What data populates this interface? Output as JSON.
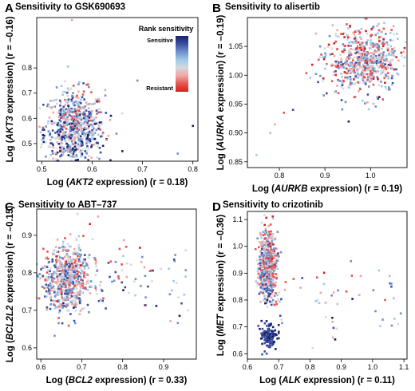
{
  "legend": {
    "title": "Rank sensitivity",
    "top_label": "Sensitive",
    "bottom_label": "Resistant",
    "colors": [
      "#1a1f6e",
      "#3a4fa0",
      "#6f8fce",
      "#9ccbe8",
      "#d6d8dc",
      "#f2a5a5",
      "#e8544e",
      "#d81e1e"
    ]
  },
  "chart_data": [
    {
      "panel": "A",
      "type": "scatter",
      "title": "Sensitivity to GSK690693",
      "xlabel_prefix": "Log (",
      "xlabel_gene": "AKT2",
      "xlabel_suffix": " expression) (r = 0.18)",
      "ylabel_prefix": "Log (",
      "ylabel_gene": "AKT3",
      "ylabel_suffix": " expression) (r = –0.16)",
      "xlim": [
        0.49,
        0.81
      ],
      "ylim": [
        0.43,
        1.0
      ],
      "xticks": [
        {
          "v": 0.5,
          "t": "0.5"
        },
        {
          "v": 0.6,
          "t": "0.6"
        },
        {
          "v": 0.7,
          "t": "0.7"
        },
        {
          "v": 0.8,
          "t": "0.8"
        }
      ],
      "yticks": [
        {
          "v": 0.5,
          "t": "0.5"
        },
        {
          "v": 0.6,
          "t": "0.6"
        },
        {
          "v": 0.7,
          "t": "0.7"
        },
        {
          "v": 0.8,
          "t": "0.8"
        }
      ],
      "n_points": 700,
      "cluster": {
        "cx": 0.565,
        "sx": 0.03,
        "cy": 0.56,
        "sy": 0.075
      },
      "outliers": [
        [
          0.56,
          0.99
        ],
        [
          0.69,
          0.75
        ],
        [
          0.8,
          0.57
        ],
        [
          0.77,
          0.46
        ],
        [
          0.66,
          0.47
        ]
      ],
      "has_legend": true
    },
    {
      "panel": "B",
      "type": "scatter",
      "title": "Sensitivity to alisertib",
      "xlabel_prefix": "Log (",
      "xlabel_gene": "AURKB",
      "xlabel_suffix": " expression) (r = 0.19)",
      "ylabel_prefix": "Log (",
      "ylabel_gene": "AURKA",
      "ylabel_suffix": " expression) (r = –0.19)",
      "xlim": [
        0.73,
        1.08
      ],
      "ylim": [
        0.84,
        1.1
      ],
      "xticks": [
        {
          "v": 0.8,
          "t": "0.8"
        },
        {
          "v": 0.9,
          "t": "0.9"
        },
        {
          "v": 1.0,
          "t": "1.0"
        }
      ],
      "yticks": [
        {
          "v": 0.85,
          "t": "0.85"
        },
        {
          "v": 0.9,
          "t": "0.90"
        },
        {
          "v": 0.95,
          "t": "0.95"
        },
        {
          "v": 1.0,
          "t": "1.00"
        },
        {
          "v": 1.05,
          "t": "1.05"
        }
      ],
      "n_points": 650,
      "cluster": {
        "cx": 0.985,
        "sx": 0.04,
        "cy": 1.025,
        "sy": 0.028
      },
      "outliers": [
        [
          0.75,
          0.862
        ],
        [
          0.78,
          0.9
        ],
        [
          0.79,
          0.915
        ],
        [
          0.81,
          0.935
        ],
        [
          0.83,
          0.94
        ]
      ],
      "has_legend": false
    },
    {
      "panel": "C",
      "type": "scatter",
      "title": "Sensitivity to ABT–737",
      "xlabel_prefix": "Log (",
      "xlabel_gene": "BCL2",
      "xlabel_suffix": " expression) (r = 0.33)",
      "ylabel_prefix": "Log (",
      "ylabel_gene": "BCL2L2",
      "ylabel_suffix": " expression) (r = –0.15)",
      "xlim": [
        0.59,
        0.98
      ],
      "ylim": [
        0.57,
        0.97
      ],
      "xticks": [
        {
          "v": 0.6,
          "t": "0.6"
        },
        {
          "v": 0.7,
          "t": "0.7"
        },
        {
          "v": 0.8,
          "t": "0.8"
        },
        {
          "v": 0.9,
          "t": "0.9"
        }
      ],
      "yticks": [
        {
          "v": 0.6,
          "t": "0.6"
        },
        {
          "v": 0.7,
          "t": "0.7"
        },
        {
          "v": 0.8,
          "t": "0.8"
        },
        {
          "v": 0.9,
          "t": "0.9"
        }
      ],
      "n_points": 650,
      "cluster": {
        "cx": 0.665,
        "sx": 0.028,
        "cy": 0.785,
        "sy": 0.045
      },
      "tail": {
        "x0": 0.7,
        "x1": 0.96,
        "y": 0.77,
        "sy": 0.05,
        "n": 70
      },
      "outliers": [
        [
          0.74,
          0.95
        ],
        [
          0.72,
          0.93
        ],
        [
          0.96,
          0.7
        ]
      ],
      "has_legend": false
    },
    {
      "panel": "D",
      "type": "scatter",
      "title": "Sensitivity to crizotinib",
      "xlabel_prefix": "Log (",
      "xlabel_gene": "ALK",
      "xlabel_suffix": " expression) (r = 0.11)",
      "ylabel_prefix": "Log (",
      "ylabel_gene": "MET",
      "ylabel_suffix": " expression) (r = –0.36)",
      "xlim": [
        0.6,
        1.11
      ],
      "ylim": [
        0.58,
        1.13
      ],
      "xticks": [
        {
          "v": 0.6,
          "t": "0.6"
        },
        {
          "v": 0.7,
          "t": "0.7"
        },
        {
          "v": 0.8,
          "t": "0.8"
        },
        {
          "v": 0.9,
          "t": "0.9"
        },
        {
          "v": 1.0,
          "t": "1.0"
        },
        {
          "v": 1.1,
          "t": "1.1"
        }
      ],
      "yticks": [
        {
          "v": 0.6,
          "t": "0.6"
        },
        {
          "v": 0.7,
          "t": "0.7"
        },
        {
          "v": 0.8,
          "t": "0.8"
        },
        {
          "v": 0.9,
          "t": "0.9"
        },
        {
          "v": 1.0,
          "t": "1.0"
        },
        {
          "v": 1.1,
          "t": "1.1"
        }
      ],
      "n_points": 600,
      "cluster": {
        "cx": 0.665,
        "sx": 0.014,
        "cy": 0.93,
        "sy": 0.065
      },
      "cluster2": {
        "cx": 0.67,
        "sx": 0.012,
        "cy": 0.66,
        "sy": 0.022,
        "n": 120
      },
      "tail": {
        "x0": 0.7,
        "x1": 1.09,
        "y": 0.8,
        "sy": 0.08,
        "n": 45
      },
      "outliers": [
        [
          1.02,
          0.91
        ],
        [
          1.04,
          0.8
        ],
        [
          1.06,
          0.85
        ],
        [
          1.09,
          0.75
        ],
        [
          1.07,
          0.73
        ]
      ],
      "has_legend": false
    }
  ]
}
